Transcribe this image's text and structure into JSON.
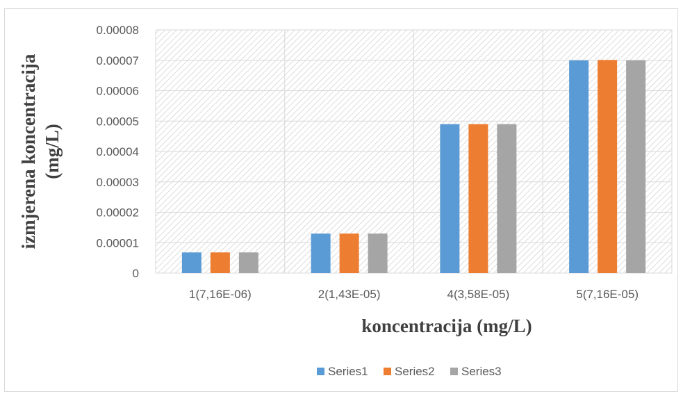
{
  "chart_data": {
    "type": "bar",
    "categories": [
      "1(7,16E-06)",
      "2(1,43E-05)",
      "4(3,58E-05)",
      "5(7,16E-05)"
    ],
    "series": [
      {
        "name": "Series1",
        "color": "#5b9bd5",
        "values": [
          6.8e-06,
          1.3e-05,
          4.9e-05,
          7e-05
        ]
      },
      {
        "name": "Series2",
        "color": "#ed7d31",
        "values": [
          6.8e-06,
          1.3e-05,
          4.9e-05,
          7.01e-05
        ]
      },
      {
        "name": "Series3",
        "color": "#a5a5a5",
        "values": [
          6.8e-06,
          1.3e-05,
          4.9e-05,
          7e-05
        ]
      }
    ],
    "y_ticks": [
      "0",
      "0.00001",
      "0.00002",
      "0.00003",
      "0.00004",
      "0.00005",
      "0.00006",
      "0.00007",
      "0.00008"
    ],
    "ylim": [
      0,
      8e-05
    ],
    "xlabel": "koncentracija (mg/L)",
    "ylabel_lines": [
      "izmjerena koncentracija",
      "(mg/L)"
    ],
    "grid": true,
    "legend_position": "bottom"
  }
}
